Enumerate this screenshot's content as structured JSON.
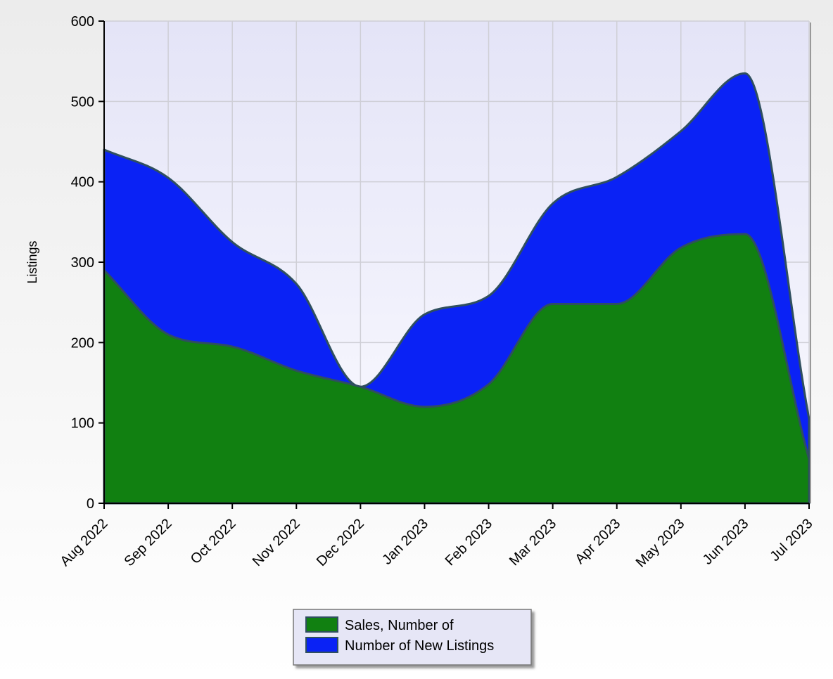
{
  "chart_data": {
    "type": "area",
    "stacked": true,
    "smoothed": true,
    "categories": [
      "Aug 2022",
      "Sep 2022",
      "Oct 2022",
      "Nov 2022",
      "Dec 2022",
      "Jan 2023",
      "Feb 2023",
      "Mar 2023",
      "Apr 2023",
      "May 2023",
      "Jun 2023",
      "Jul 2023"
    ],
    "series": [
      {
        "name": "Sales, Number of",
        "color": "#118011",
        "values": [
          290,
          210,
          195,
          165,
          145,
          120,
          148,
          248,
          248,
          318,
          335,
          55
        ]
      },
      {
        "name": "Number of New Listings",
        "color": "#0a22f5",
        "values": [
          150,
          195,
          130,
          108,
          0,
          115,
          110,
          125,
          158,
          145,
          200,
          50
        ]
      }
    ],
    "ylabel": "Listings",
    "xlabel": "",
    "ylim": [
      0,
      600
    ],
    "yticks": [
      0,
      100,
      200,
      300,
      400,
      500,
      600
    ],
    "grid": true,
    "legend_position": "bottom-center",
    "plot_background": "#e6e6f8",
    "outline_color": "#2f4f5f"
  }
}
